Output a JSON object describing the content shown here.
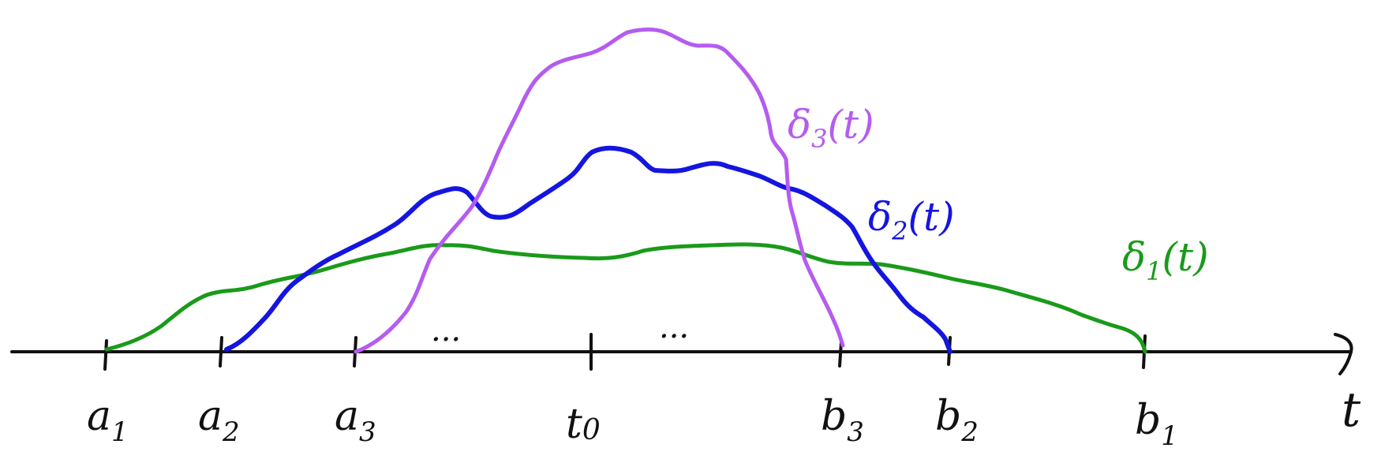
{
  "axis": {
    "variable": "t",
    "ticks": [
      {
        "id": "a1",
        "base": "a",
        "sub": "1"
      },
      {
        "id": "a2",
        "base": "a",
        "sub": "2"
      },
      {
        "id": "a3",
        "base": "a",
        "sub": "3"
      },
      {
        "id": "t0",
        "base": "t",
        "sub": "0"
      },
      {
        "id": "b3",
        "base": "b",
        "sub": "3"
      },
      {
        "id": "b2",
        "base": "b",
        "sub": "2"
      },
      {
        "id": "b1",
        "base": "b",
        "sub": "1"
      }
    ],
    "ellipsis": "..."
  },
  "curves": [
    {
      "id": "delta1",
      "base": "δ",
      "sub": "1",
      "arg": "(t)",
      "color": "#1a9a1a"
    },
    {
      "id": "delta2",
      "base": "δ",
      "sub": "2",
      "arg": "(t)",
      "color": "#1515e0"
    },
    {
      "id": "delta3",
      "base": "δ",
      "sub": "3",
      "arg": "(t)",
      "color": "#b45cf0"
    }
  ]
}
